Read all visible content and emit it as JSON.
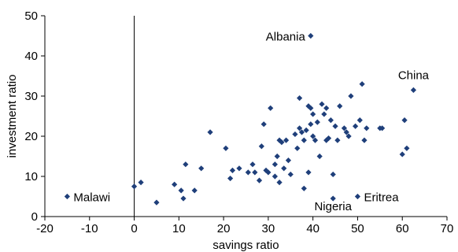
{
  "chart_data": {
    "type": "scatter",
    "xlabel": "savings ratio",
    "ylabel": "investment ratio",
    "xlim": [
      -20,
      70
    ],
    "ylim": [
      0,
      50
    ],
    "x_ticks": [
      -20,
      -10,
      0,
      10,
      20,
      30,
      40,
      50,
      60,
      70
    ],
    "y_ticks": [
      0,
      10,
      20,
      30,
      40,
      50
    ],
    "grid": false,
    "marker": "diamond",
    "point_color": "#1f3f7a",
    "annotations": [
      {
        "text": "Albania",
        "x": 39.5,
        "y": 45
      },
      {
        "text": "China",
        "x": 62.5,
        "y": 31.5
      },
      {
        "text": "Malawi",
        "x": -15,
        "y": 5
      },
      {
        "text": "Nigeria",
        "x": 44.5,
        "y": 4.5
      },
      {
        "text": "Eritrea",
        "x": 50,
        "y": 5
      }
    ],
    "points": [
      {
        "x": 39.5,
        "y": 45
      },
      {
        "x": 62.5,
        "y": 31.5
      },
      {
        "x": -15,
        "y": 5
      },
      {
        "x": 44.5,
        "y": 4.5
      },
      {
        "x": 50,
        "y": 5
      },
      {
        "x": 0,
        "y": 7.5
      },
      {
        "x": 1.5,
        "y": 8.5
      },
      {
        "x": 5,
        "y": 3.5
      },
      {
        "x": 9,
        "y": 8
      },
      {
        "x": 10.5,
        "y": 6.5
      },
      {
        "x": 11,
        "y": 4.5
      },
      {
        "x": 11.5,
        "y": 13
      },
      {
        "x": 13.5,
        "y": 6.5
      },
      {
        "x": 15,
        "y": 12
      },
      {
        "x": 17,
        "y": 21
      },
      {
        "x": 20.5,
        "y": 17
      },
      {
        "x": 21.5,
        "y": 9.5
      },
      {
        "x": 22,
        "y": 11.5
      },
      {
        "x": 23.5,
        "y": 12
      },
      {
        "x": 25.5,
        "y": 11
      },
      {
        "x": 26.5,
        "y": 13
      },
      {
        "x": 27,
        "y": 11
      },
      {
        "x": 28,
        "y": 9
      },
      {
        "x": 28.5,
        "y": 17.5
      },
      {
        "x": 29,
        "y": 23
      },
      {
        "x": 29.5,
        "y": 11.5
      },
      {
        "x": 30,
        "y": 11
      },
      {
        "x": 30.5,
        "y": 27
      },
      {
        "x": 31.5,
        "y": 10
      },
      {
        "x": 31.5,
        "y": 13
      },
      {
        "x": 32,
        "y": 15
      },
      {
        "x": 32.5,
        "y": 19
      },
      {
        "x": 32.5,
        "y": 8.5
      },
      {
        "x": 33,
        "y": 18.5
      },
      {
        "x": 33.5,
        "y": 12
      },
      {
        "x": 34,
        "y": 19
      },
      {
        "x": 34.5,
        "y": 14
      },
      {
        "x": 35,
        "y": 10.5
      },
      {
        "x": 36,
        "y": 20.5
      },
      {
        "x": 36.5,
        "y": 17
      },
      {
        "x": 37,
        "y": 29.5
      },
      {
        "x": 37,
        "y": 22
      },
      {
        "x": 37.5,
        "y": 21
      },
      {
        "x": 38,
        "y": 19
      },
      {
        "x": 38,
        "y": 7
      },
      {
        "x": 38.5,
        "y": 21.5
      },
      {
        "x": 39,
        "y": 27.5
      },
      {
        "x": 39,
        "y": 11
      },
      {
        "x": 39.5,
        "y": 23
      },
      {
        "x": 39.5,
        "y": 27
      },
      {
        "x": 40,
        "y": 20
      },
      {
        "x": 40,
        "y": 25.5
      },
      {
        "x": 40.5,
        "y": 19
      },
      {
        "x": 41,
        "y": 23.5
      },
      {
        "x": 41.5,
        "y": 15
      },
      {
        "x": 42,
        "y": 28
      },
      {
        "x": 42.5,
        "y": 25.5
      },
      {
        "x": 43,
        "y": 27
      },
      {
        "x": 43,
        "y": 19
      },
      {
        "x": 43.5,
        "y": 19.5
      },
      {
        "x": 44,
        "y": 24
      },
      {
        "x": 44.5,
        "y": 10.5
      },
      {
        "x": 45,
        "y": 22.5
      },
      {
        "x": 45.5,
        "y": 19
      },
      {
        "x": 46,
        "y": 27.5
      },
      {
        "x": 47,
        "y": 22
      },
      {
        "x": 47.5,
        "y": 21
      },
      {
        "x": 48,
        "y": 20
      },
      {
        "x": 48.5,
        "y": 30
      },
      {
        "x": 49.5,
        "y": 22.5
      },
      {
        "x": 50.5,
        "y": 24
      },
      {
        "x": 51,
        "y": 33
      },
      {
        "x": 51.5,
        "y": 19
      },
      {
        "x": 52,
        "y": 22
      },
      {
        "x": 55,
        "y": 22
      },
      {
        "x": 55.5,
        "y": 22
      },
      {
        "x": 60,
        "y": 15.5
      },
      {
        "x": 60.5,
        "y": 24
      },
      {
        "x": 61,
        "y": 17
      }
    ]
  }
}
